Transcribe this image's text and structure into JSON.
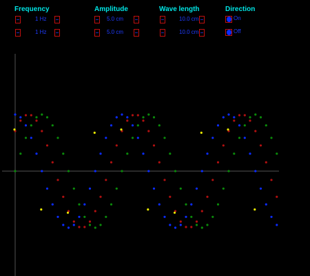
{
  "controls": {
    "frequency": {
      "label": "Frequency",
      "row1_value": "1 Hz",
      "row2_value": "1 Hz"
    },
    "amplitude": {
      "label": "Amplitude",
      "row1_value": "5.0 cm",
      "row2_value": "5.0 cm"
    },
    "wavelength": {
      "label": "Wave length",
      "row1_value": "10.0 cm",
      "row2_value": "10.0 cm"
    },
    "direction": {
      "label": "Direction",
      "options": [
        {
          "label": "On",
          "selected": true
        },
        {
          "label": "Off",
          "selected": true
        }
      ]
    }
  },
  "colors": {
    "header": "#00e5e5",
    "value": "#1f3cff",
    "box_border": "#c01010",
    "wave_blue": "#0b2cff",
    "wave_red": "#b01010",
    "wave_green": "#0a8a0a",
    "wave_yellow": "#e8e800",
    "axis": "#555555"
  },
  "chart_data": {
    "type": "scatter",
    "series": [
      {
        "color": "blue",
        "amplitude": 5.0,
        "wavelength": 10.0,
        "phase_deg": 0
      },
      {
        "color": "red",
        "amplitude": 5.0,
        "wavelength": 10.0,
        "phase_deg": -45
      },
      {
        "color": "green",
        "amplitude": 5.0,
        "wavelength": 10.0,
        "phase_deg": -90
      },
      {
        "color": "yellow",
        "amplitude": 5.0,
        "wavelength": 10.0,
        "phase_deg": 45
      }
    ]
  }
}
